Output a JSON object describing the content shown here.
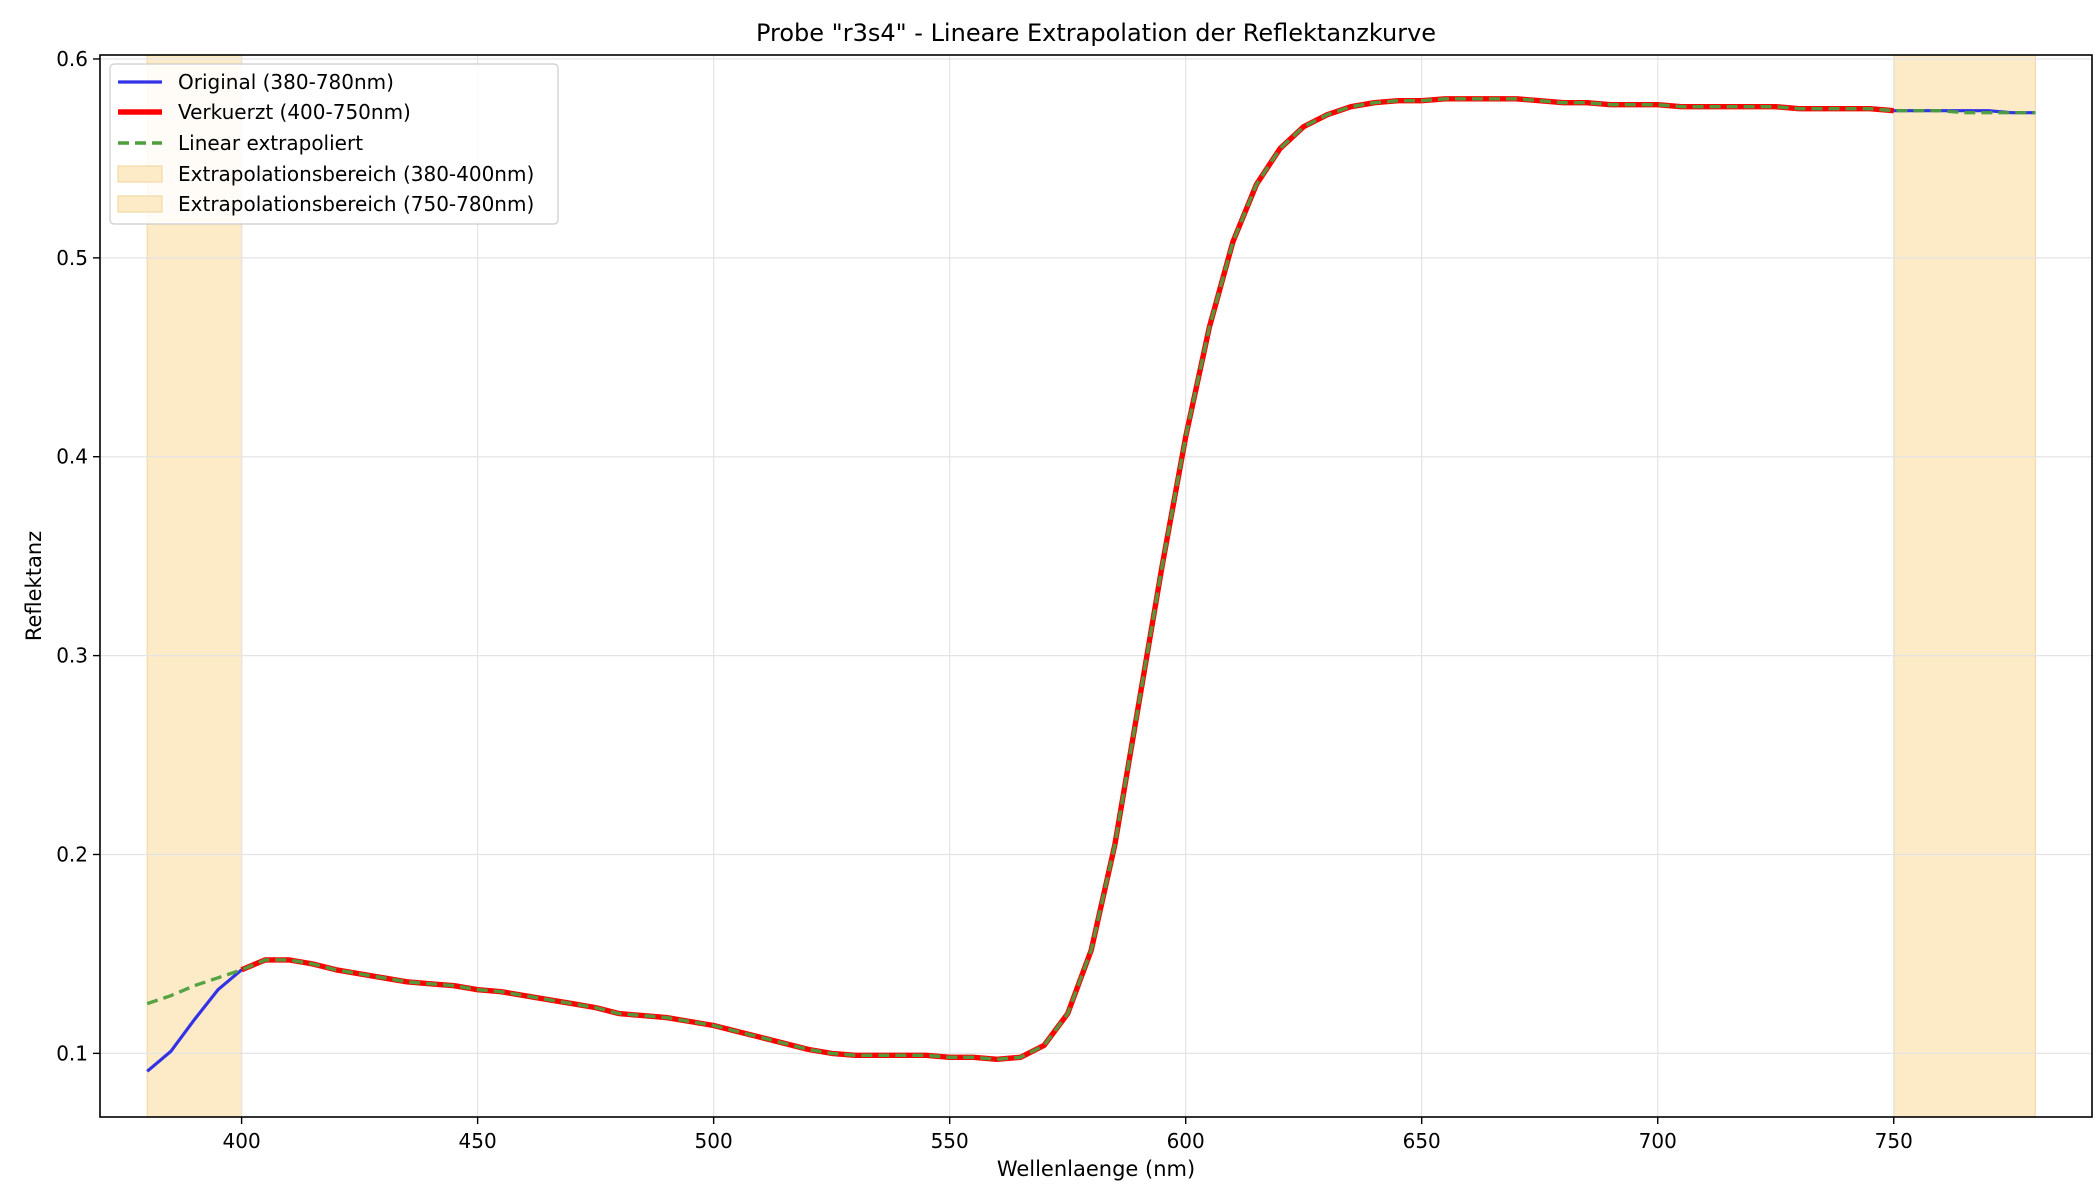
{
  "chart_data": {
    "type": "line",
    "title": "Probe \"r3s4\" - Lineare Extrapolation der Reflektanzkurve",
    "xlabel": "Wellenlaenge (nm)",
    "ylabel": "Reflektanz",
    "xlim": [
      370,
      792
    ],
    "ylim": [
      0.068,
      0.602
    ],
    "xticks": [
      400,
      450,
      500,
      550,
      600,
      650,
      700,
      750
    ],
    "yticks": [
      0.1,
      0.2,
      0.3,
      0.4,
      0.5,
      0.6
    ],
    "xtick_labels": [
      "400",
      "450",
      "500",
      "550",
      "600",
      "650",
      "700",
      "750"
    ],
    "ytick_labels": [
      "0.1",
      "0.2",
      "0.3",
      "0.4",
      "0.5",
      "0.6"
    ],
    "grid": true,
    "legend_position": "top-left",
    "shaded_regions": [
      {
        "name": "Extrapolationsbereich (380-400nm)",
        "x_start": 380,
        "x_end": 400,
        "color": "#fdebc8"
      },
      {
        "name": "Extrapolationsbereich (750-780nm)",
        "x_start": 750,
        "x_end": 780,
        "color": "#fdebc8"
      }
    ],
    "series": [
      {
        "name": "Original (380-780nm)",
        "color": "#3232e6",
        "style": "solid",
        "x": [
          380,
          385,
          390,
          395,
          400,
          405,
          410,
          415,
          420,
          425,
          430,
          435,
          440,
          445,
          450,
          455,
          460,
          465,
          470,
          475,
          480,
          485,
          490,
          495,
          500,
          505,
          510,
          515,
          520,
          525,
          530,
          535,
          540,
          545,
          550,
          555,
          560,
          565,
          570,
          575,
          580,
          585,
          590,
          595,
          600,
          605,
          610,
          615,
          620,
          625,
          630,
          635,
          640,
          645,
          650,
          655,
          660,
          665,
          670,
          675,
          680,
          685,
          690,
          695,
          700,
          705,
          710,
          715,
          720,
          725,
          730,
          735,
          740,
          745,
          750,
          755,
          760,
          765,
          770,
          775,
          780
        ],
        "y": [
          0.091,
          0.101,
          0.117,
          0.132,
          0.142,
          0.147,
          0.147,
          0.145,
          0.142,
          0.14,
          0.138,
          0.136,
          0.135,
          0.134,
          0.132,
          0.131,
          0.129,
          0.127,
          0.125,
          0.123,
          0.12,
          0.119,
          0.118,
          0.116,
          0.114,
          0.111,
          0.108,
          0.105,
          0.102,
          0.1,
          0.099,
          0.099,
          0.099,
          0.099,
          0.098,
          0.098,
          0.097,
          0.098,
          0.104,
          0.12,
          0.152,
          0.205,
          0.275,
          0.345,
          0.41,
          0.465,
          0.508,
          0.537,
          0.555,
          0.566,
          0.572,
          0.576,
          0.578,
          0.579,
          0.579,
          0.58,
          0.58,
          0.58,
          0.58,
          0.579,
          0.578,
          0.578,
          0.577,
          0.577,
          0.577,
          0.576,
          0.576,
          0.576,
          0.576,
          0.576,
          0.575,
          0.575,
          0.575,
          0.575,
          0.574,
          0.574,
          0.574,
          0.574,
          0.574,
          0.573,
          0.573
        ]
      },
      {
        "name": "Verkuerzt (400-750nm)",
        "color": "#ff0000",
        "style": "solid",
        "x": [
          400,
          405,
          410,
          415,
          420,
          425,
          430,
          435,
          440,
          445,
          450,
          455,
          460,
          465,
          470,
          475,
          480,
          485,
          490,
          495,
          500,
          505,
          510,
          515,
          520,
          525,
          530,
          535,
          540,
          545,
          550,
          555,
          560,
          565,
          570,
          575,
          580,
          585,
          590,
          595,
          600,
          605,
          610,
          615,
          620,
          625,
          630,
          635,
          640,
          645,
          650,
          655,
          660,
          665,
          670,
          675,
          680,
          685,
          690,
          695,
          700,
          705,
          710,
          715,
          720,
          725,
          730,
          735,
          740,
          745,
          750
        ],
        "y": [
          0.142,
          0.147,
          0.147,
          0.145,
          0.142,
          0.14,
          0.138,
          0.136,
          0.135,
          0.134,
          0.132,
          0.131,
          0.129,
          0.127,
          0.125,
          0.123,
          0.12,
          0.119,
          0.118,
          0.116,
          0.114,
          0.111,
          0.108,
          0.105,
          0.102,
          0.1,
          0.099,
          0.099,
          0.099,
          0.099,
          0.098,
          0.098,
          0.097,
          0.098,
          0.104,
          0.12,
          0.152,
          0.205,
          0.275,
          0.345,
          0.41,
          0.465,
          0.508,
          0.537,
          0.555,
          0.566,
          0.572,
          0.576,
          0.578,
          0.579,
          0.579,
          0.58,
          0.58,
          0.58,
          0.58,
          0.579,
          0.578,
          0.578,
          0.577,
          0.577,
          0.577,
          0.576,
          0.576,
          0.576,
          0.576,
          0.576,
          0.575,
          0.575,
          0.575,
          0.575,
          0.574
        ]
      },
      {
        "name": "Linear extrapoliert",
        "color": "#4c9f3d",
        "style": "dashed",
        "x": [
          380,
          385,
          390,
          395,
          400,
          405,
          410,
          415,
          420,
          425,
          430,
          435,
          440,
          445,
          450,
          455,
          460,
          465,
          470,
          475,
          480,
          485,
          490,
          495,
          500,
          505,
          510,
          515,
          520,
          525,
          530,
          535,
          540,
          545,
          550,
          555,
          560,
          565,
          570,
          575,
          580,
          585,
          590,
          595,
          600,
          605,
          610,
          615,
          620,
          625,
          630,
          635,
          640,
          645,
          650,
          655,
          660,
          665,
          670,
          675,
          680,
          685,
          690,
          695,
          700,
          705,
          710,
          715,
          720,
          725,
          730,
          735,
          740,
          745,
          750,
          755,
          760,
          765,
          770,
          775,
          780
        ],
        "y": [
          0.125,
          0.129,
          0.134,
          0.138,
          0.142,
          0.147,
          0.147,
          0.145,
          0.142,
          0.14,
          0.138,
          0.136,
          0.135,
          0.134,
          0.132,
          0.131,
          0.129,
          0.127,
          0.125,
          0.123,
          0.12,
          0.119,
          0.118,
          0.116,
          0.114,
          0.111,
          0.108,
          0.105,
          0.102,
          0.1,
          0.099,
          0.099,
          0.099,
          0.099,
          0.098,
          0.098,
          0.097,
          0.098,
          0.104,
          0.12,
          0.152,
          0.205,
          0.275,
          0.345,
          0.41,
          0.465,
          0.508,
          0.537,
          0.555,
          0.566,
          0.572,
          0.576,
          0.578,
          0.579,
          0.579,
          0.58,
          0.58,
          0.58,
          0.58,
          0.579,
          0.578,
          0.578,
          0.577,
          0.577,
          0.577,
          0.576,
          0.576,
          0.576,
          0.576,
          0.576,
          0.575,
          0.575,
          0.575,
          0.575,
          0.574,
          0.574,
          0.574,
          0.573,
          0.573,
          0.573,
          0.573
        ]
      }
    ]
  }
}
